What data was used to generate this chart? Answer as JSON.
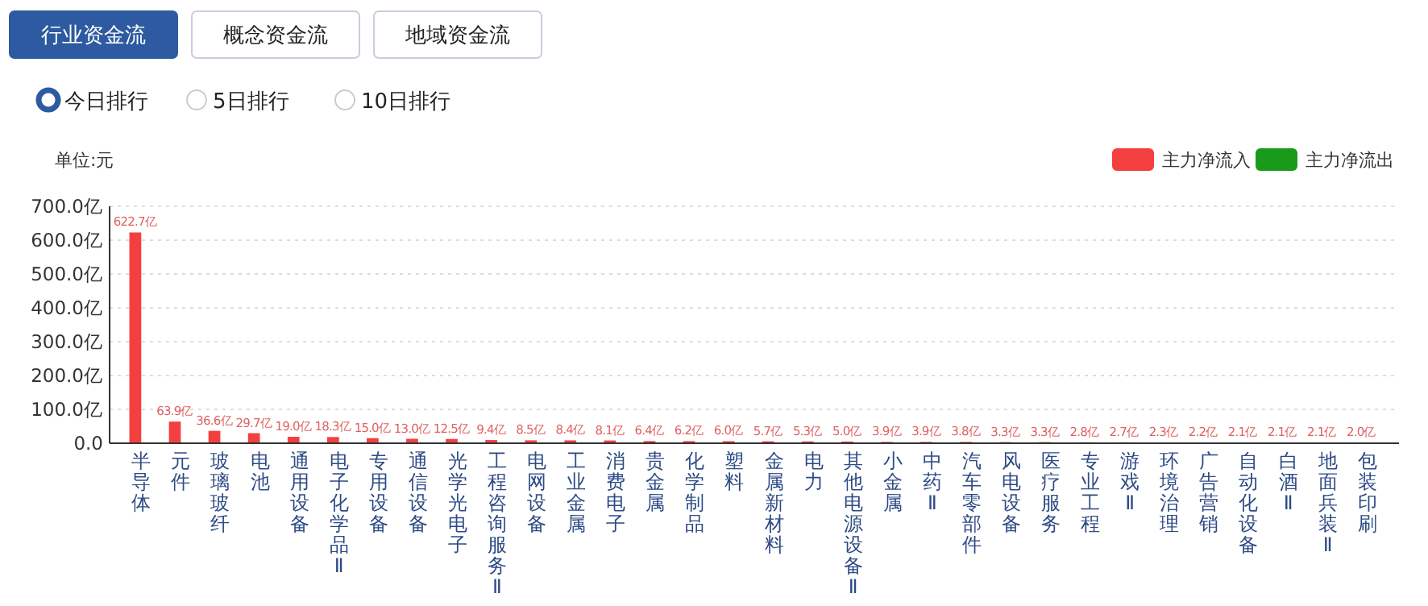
{
  "chart_data": {
    "type": "bar",
    "annotations": [
      "行业资金流",
      "概念资金流",
      "地域资金流",
      "今日排行",
      "5日排行",
      "10日排行"
    ],
    "ylabel": "单位:元",
    "categories": [
      "半导体",
      "元件",
      "玻璃玻纤",
      "电池",
      "通用设备",
      "电子化学品Ⅱ",
      "专用设备",
      "通信设备",
      "光学光电子",
      "工程咨询服务Ⅱ",
      "电网设备",
      "工业金属",
      "消费电子",
      "贵金属",
      "化学制品",
      "塑料",
      "金属新材料",
      "电力",
      "其他电源设备Ⅱ",
      "小金属",
      "中药Ⅱ",
      "汽车零部件",
      "风电设备",
      "医疗服务",
      "专业工程",
      "游戏Ⅱ",
      "环境治理",
      "广告营销",
      "自动化设备",
      "白酒Ⅱ",
      "地面兵装Ⅱ",
      "包装印刷"
    ],
    "series": [
      {
        "name": "主力净流入",
        "color": "#f43f3f",
        "values": [
          622.7,
          63.9,
          36.6,
          29.7,
          19.0,
          18.3,
          15.0,
          13.0,
          12.5,
          9.4,
          8.5,
          8.4,
          8.1,
          6.4,
          6.2,
          6.0,
          5.7,
          5.3,
          5.0,
          3.9,
          3.9,
          3.8,
          3.3,
          3.3,
          2.8,
          2.7,
          2.3,
          2.2,
          2.1,
          2.1,
          2.1,
          2.0
        ],
        "value_labels": [
          "622.7亿",
          "63.9亿",
          "36.6亿",
          "29.7亿",
          "19.0亿",
          "18.3亿",
          "15.0亿",
          "13.0亿",
          "12.5亿",
          "9.4亿",
          "8.5亿",
          "8.4亿",
          "8.1亿",
          "6.4亿",
          "6.2亿",
          "6.0亿",
          "5.7亿",
          "5.3亿",
          "5.0亿",
          "3.9亿",
          "3.9亿",
          "3.8亿",
          "3.3亿",
          "3.3亿",
          "2.8亿",
          "2.7亿",
          "2.3亿",
          "2.2亿",
          "2.1亿",
          "2.1亿",
          "2.1亿",
          "2.0亿"
        ]
      },
      {
        "name": "主力净流出",
        "color": "#1a9a1a",
        "values": [
          null,
          null,
          null,
          null,
          null,
          null,
          null,
          null,
          null,
          null,
          null,
          null,
          null,
          null,
          null,
          null,
          null,
          null,
          null,
          null,
          null,
          null,
          null,
          null,
          null,
          null,
          null,
          null,
          null,
          null,
          null,
          null
        ]
      }
    ],
    "ylim": [
      0,
      700
    ],
    "yticks": [
      {
        "value": 0,
        "label": "0.0"
      },
      {
        "value": 100,
        "label": "100.0亿"
      },
      {
        "value": 200,
        "label": "200.0亿"
      },
      {
        "value": 300,
        "label": "300.0亿"
      },
      {
        "value": 400,
        "label": "400.0亿"
      },
      {
        "value": 500,
        "label": "500.0亿"
      },
      {
        "value": 600,
        "label": "600.0亿"
      },
      {
        "value": 700,
        "label": "700.0亿"
      }
    ],
    "grid": "y",
    "legend": "top right"
  }
}
